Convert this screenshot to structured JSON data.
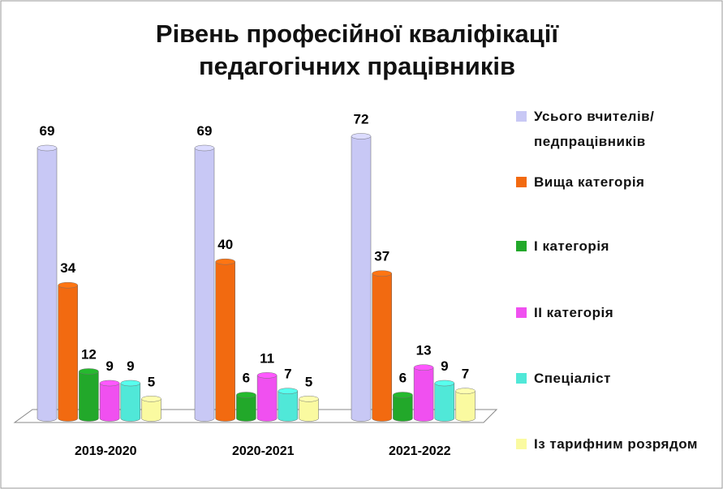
{
  "chart_data": {
    "type": "bar",
    "title": "Рівень професійної кваліфікації педагогічних працівників",
    "categories": [
      "2019-2020",
      "2020-2021",
      "2021-2022"
    ],
    "series": [
      {
        "name": "Усього вчителів/ педпрацівників",
        "color": "#c8c8f5",
        "values": [
          69,
          69,
          72
        ]
      },
      {
        "name": "Вища категорія",
        "color": "#f26a10",
        "values": [
          34,
          40,
          37
        ]
      },
      {
        "name": "І категорія",
        "color": "#22a82a",
        "values": [
          12,
          6,
          6
        ]
      },
      {
        "name": "ІІ категорія",
        "color": "#f050f0",
        "values": [
          9,
          11,
          13
        ]
      },
      {
        "name": "Спеціаліст",
        "color": "#50e8d8",
        "values": [
          9,
          7,
          9
        ]
      },
      {
        "name": "Із тарифним розрядом",
        "color": "#fafaa0",
        "values": [
          5,
          5,
          7
        ]
      }
    ],
    "legend": "right"
  }
}
